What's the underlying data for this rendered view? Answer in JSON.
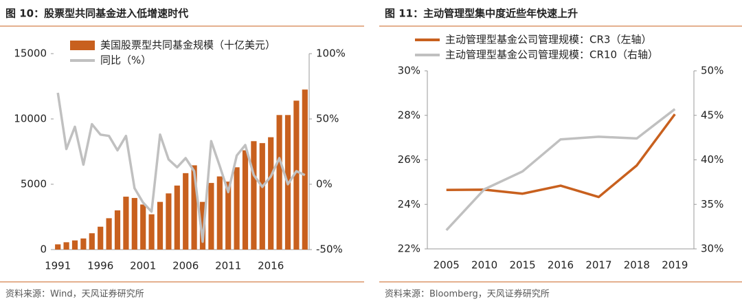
{
  "chart_data": [
    {
      "type": "bar",
      "title": "图 10：股票型共同基金进入低增速时代",
      "source": "资料来源：Wind，天风证券研究所",
      "categories": [
        "1991",
        null,
        null,
        null,
        null,
        "1996",
        null,
        null,
        null,
        null,
        "2001",
        null,
        null,
        null,
        null,
        "2006",
        null,
        null,
        null,
        null,
        "2011",
        null,
        null,
        null,
        null,
        "2016",
        null,
        null,
        null,
        null
      ],
      "series": [
        {
          "name": "美国股票型共同基金规模（十亿美元）",
          "type": "bar",
          "color": "#c8601e",
          "values": [
            400,
            560,
            700,
            850,
            1250,
            1750,
            2400,
            3000,
            4050,
            3950,
            3450,
            2700,
            3650,
            4300,
            4900,
            5850,
            6450,
            3650,
            5100,
            5600,
            5200,
            6300,
            7600,
            8300,
            8150,
            8600,
            10300,
            10300,
            11400,
            12250
          ]
        },
        {
          "name": "同比（%）",
          "type": "line",
          "axis": "y2",
          "color": "#c0c0c0",
          "values": [
            70,
            27,
            44,
            15,
            46,
            38,
            37,
            26,
            37,
            -3,
            -14,
            -21,
            38,
            19,
            13,
            20,
            10,
            -44,
            33,
            14,
            -6,
            22,
            30,
            7,
            -2,
            6,
            20,
            0,
            10,
            7
          ]
        }
      ],
      "ylim": [
        0,
        15000
      ],
      "yticks": [
        0,
        5000,
        10000,
        15000
      ],
      "y2lim": [
        -50,
        100
      ],
      "y2ticks": [
        {
          "value": -50,
          "label": "-50%"
        },
        {
          "value": 0,
          "label": "0%"
        },
        {
          "value": 50,
          "label": "50%"
        },
        {
          "value": 100,
          "label": "100%"
        }
      ]
    },
    {
      "type": "line",
      "title": "图 11：主动管理型集中度近些年快速上升",
      "source": "资料来源：Bloomberg，天风证券研究所",
      "categories": [
        "2005",
        "2010",
        "2015",
        "2016",
        "2017",
        "2018",
        "2019"
      ],
      "series": [
        {
          "name": "主动管理型基金公司管理规模：CR3（左轴）",
          "type": "line",
          "color": "#c8601e",
          "values": [
            24.65,
            24.66,
            24.48,
            24.84,
            24.33,
            25.75,
            28.05
          ]
        },
        {
          "name": "主动管理型基金公司管理规模：CR10（右轴）",
          "type": "line",
          "axis": "y2",
          "color": "#c0c0c0",
          "values": [
            32.1,
            36.7,
            38.7,
            42.3,
            42.6,
            42.4,
            45.7
          ]
        }
      ],
      "ylim": [
        22,
        30
      ],
      "yticks": [
        {
          "value": 22,
          "label": "22%"
        },
        {
          "value": 24,
          "label": "24%"
        },
        {
          "value": 26,
          "label": "26%"
        },
        {
          "value": 28,
          "label": "28%"
        },
        {
          "value": 30,
          "label": "30%"
        }
      ],
      "y2lim": [
        30,
        50
      ],
      "y2ticks": [
        {
          "value": 30,
          "label": "30%"
        },
        {
          "value": 35,
          "label": "35%"
        },
        {
          "value": 40,
          "label": "40%"
        },
        {
          "value": 45,
          "label": "45%"
        },
        {
          "value": 50,
          "label": "50%"
        }
      ]
    }
  ]
}
